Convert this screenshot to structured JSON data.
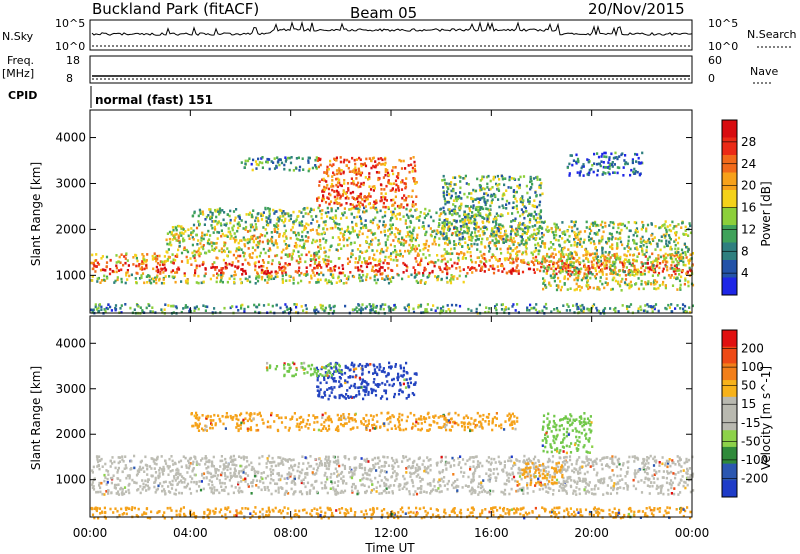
{
  "header": {
    "station": "Buckland Park (fitACF)",
    "beam": "Beam 05",
    "date": "20/Nov/2015"
  },
  "top_panels": {
    "nsky_label": "N.Sky",
    "nsky_ticks": [
      "10^5",
      "10^0"
    ],
    "nsearch_label": "N.Search",
    "nsearch_ticks": [
      "10^5",
      "10^0"
    ],
    "freq_label": "Freq.",
    "freq_unit": "[MHz]",
    "freq_ticks": [
      "18",
      "8"
    ],
    "nave_label": "Nave",
    "nave_ticks": [
      "60",
      "0"
    ],
    "cpid_label": "CPID",
    "cpid_text": "normal (fast) 151"
  },
  "chart_data": [
    {
      "type": "heatmap",
      "name": "power",
      "ylabel": "Slant Range [km]",
      "yticks": [
        "1000",
        "2000",
        "3000",
        "4000"
      ],
      "ylim": [
        180,
        4600
      ],
      "xlim": [
        0,
        24
      ],
      "colorbar": {
        "label": "Power [dB]",
        "ticks": [
          "4",
          "8",
          "12",
          "16",
          "20",
          "24",
          "28"
        ],
        "colors": [
          "#1e26e6",
          "#2353a8",
          "#2e7f7f",
          "#3fa25a",
          "#8ccf3a",
          "#f4d21a",
          "#f7a11a",
          "#f26a1a",
          "#eb2a16",
          "#d80c10"
        ]
      },
      "bands": [
        {
          "r0": 1050,
          "r1": 1300,
          "t0": 0,
          "t1": 24,
          "level": 0.85
        },
        {
          "r0": 1300,
          "r1": 1500,
          "t0": 0,
          "t1": 24,
          "level": 0.6
        },
        {
          "r0": 850,
          "r1": 1050,
          "t0": 0,
          "t1": 15,
          "level": 0.45
        },
        {
          "r0": 1500,
          "r1": 2100,
          "t0": 3,
          "t1": 17,
          "level": 0.5
        },
        {
          "r0": 2100,
          "r1": 2500,
          "t0": 4,
          "t1": 16,
          "level": 0.4
        },
        {
          "r0": 2500,
          "r1": 3600,
          "t0": 9,
          "t1": 13,
          "level": 0.75
        },
        {
          "r0": 3300,
          "r1": 3600,
          "t0": 6,
          "t1": 9,
          "level": 0.3
        },
        {
          "r0": 1800,
          "r1": 3200,
          "t0": 14,
          "t1": 18,
          "level": 0.35
        },
        {
          "r0": 700,
          "r1": 1500,
          "t0": 18,
          "t1": 24,
          "level": 0.5
        },
        {
          "r0": 1500,
          "r1": 2200,
          "t0": 17,
          "t1": 24,
          "level": 0.45
        },
        {
          "r0": 3200,
          "r1": 3700,
          "t0": 19,
          "t1": 22,
          "level": 0.2
        },
        {
          "r0": 200,
          "r1": 400,
          "t0": 0,
          "t1": 24,
          "level": 0.3
        }
      ]
    },
    {
      "type": "heatmap",
      "name": "velocity",
      "ylabel": "Slant Range [km]",
      "yticks": [
        "1000",
        "2000",
        "3000",
        "4000"
      ],
      "ylim": [
        180,
        4600
      ],
      "xlim": [
        0,
        24
      ],
      "xticks": [
        "00:00",
        "04:00",
        "08:00",
        "12:00",
        "16:00",
        "20:00",
        "00:00"
      ],
      "xlabel": "Time UT",
      "colorbar": {
        "label": "Velocity [m s^-1]",
        "ticks": [
          "200",
          "100",
          "50",
          "15",
          "-15",
          "-50",
          "-100",
          "-200"
        ],
        "colors": [
          "#1f3cc8",
          "#2b57b0",
          "#2f8a3a",
          "#8dd24a",
          "#b9b9b0",
          "#b9b9b0",
          "#f7b21a",
          "#f27f1a",
          "#ee4a16",
          "#e01010"
        ]
      },
      "bands": [
        {
          "r0": 700,
          "r1": 1550,
          "t0": 0,
          "t1": 24,
          "code": "gray"
        },
        {
          "r0": 2100,
          "r1": 2500,
          "t0": 4,
          "t1": 17,
          "code": "orange"
        },
        {
          "r0": 2800,
          "r1": 3600,
          "t0": 9,
          "t1": 13,
          "code": "blue"
        },
        {
          "r0": 3300,
          "r1": 3600,
          "t0": 7,
          "t1": 10,
          "code": "green"
        },
        {
          "r0": 900,
          "r1": 1400,
          "t0": 17,
          "t1": 18.8,
          "code": "orange"
        },
        {
          "r0": 1600,
          "r1": 2500,
          "t0": 18,
          "t1": 20,
          "code": "green"
        },
        {
          "r0": 180,
          "r1": 420,
          "t0": 0,
          "t1": 24,
          "code": "orange"
        }
      ]
    }
  ]
}
